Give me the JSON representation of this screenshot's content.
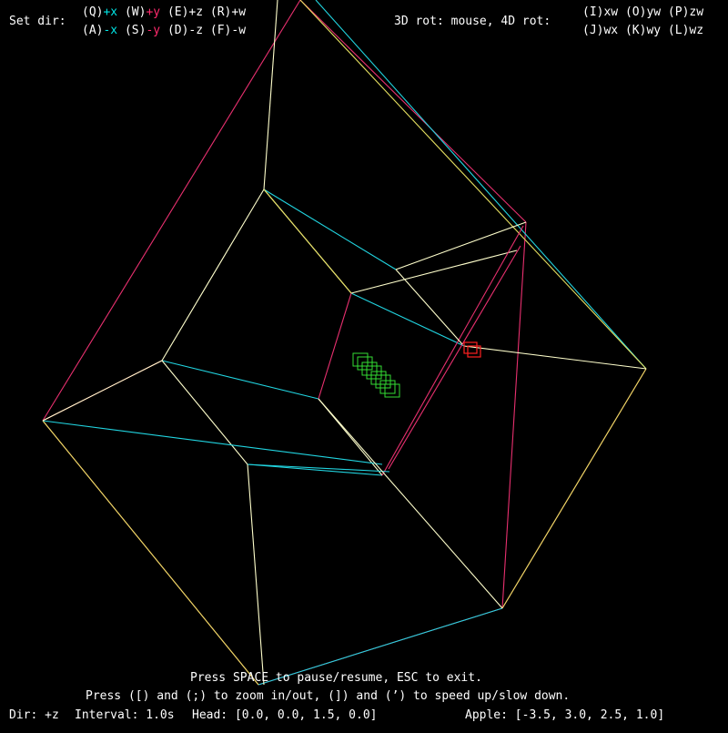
{
  "colors": {
    "background": "#000000",
    "hud_text": "#ffffff",
    "axis_x": "#00e5e5",
    "axis_y": "#ff2a6d",
    "edge_x": "#21d4e0",
    "edge_y": "#e8306f",
    "edge_z": "#ffffcc",
    "edge_w": "#e6e060",
    "snake": "#33dd33",
    "apple": "#ff2020"
  },
  "controls": {
    "set_dir_label": "Set dir:",
    "row1": {
      "q": "(Q)",
      "px": "+x",
      "w": "(W)",
      "py": "+y",
      "e": "(E)",
      "pz": "+z",
      "r": "(R)",
      "pw": "+w"
    },
    "row2": {
      "a": "(A)",
      "nx": "-x",
      "s": "(S)",
      "ny": "-y",
      "d": "(D)",
      "nz": "-z",
      "f": "(F)",
      "nw": "-w"
    },
    "rot_label": "3D rot: mouse, 4D rot:",
    "rot_row1": "(I)xw (O)yw (P)zw",
    "rot_row2": "(J)wx (K)wy (L)wz"
  },
  "help": {
    "line1": "Press SPACE to pause/resume, ESC to exit.",
    "line2": "Press ([) and (;) to zoom in/out, (]) and (’) to speed up/slow down."
  },
  "status": {
    "dir": "Dir: +z",
    "interval": "Interval: 1.0s",
    "head": "Head: [0.0, 0.0, 1.5, 0.0]",
    "apple": "Apple: [-3.5, 3.0, 2.5, 1.0]"
  },
  "game_state": {
    "direction": "+z",
    "interval_s": 1.0,
    "head": [
      0.0,
      0.0,
      1.5,
      0.0
    ],
    "apple": [
      -3.5,
      3.0,
      2.5,
      1.0
    ]
  }
}
